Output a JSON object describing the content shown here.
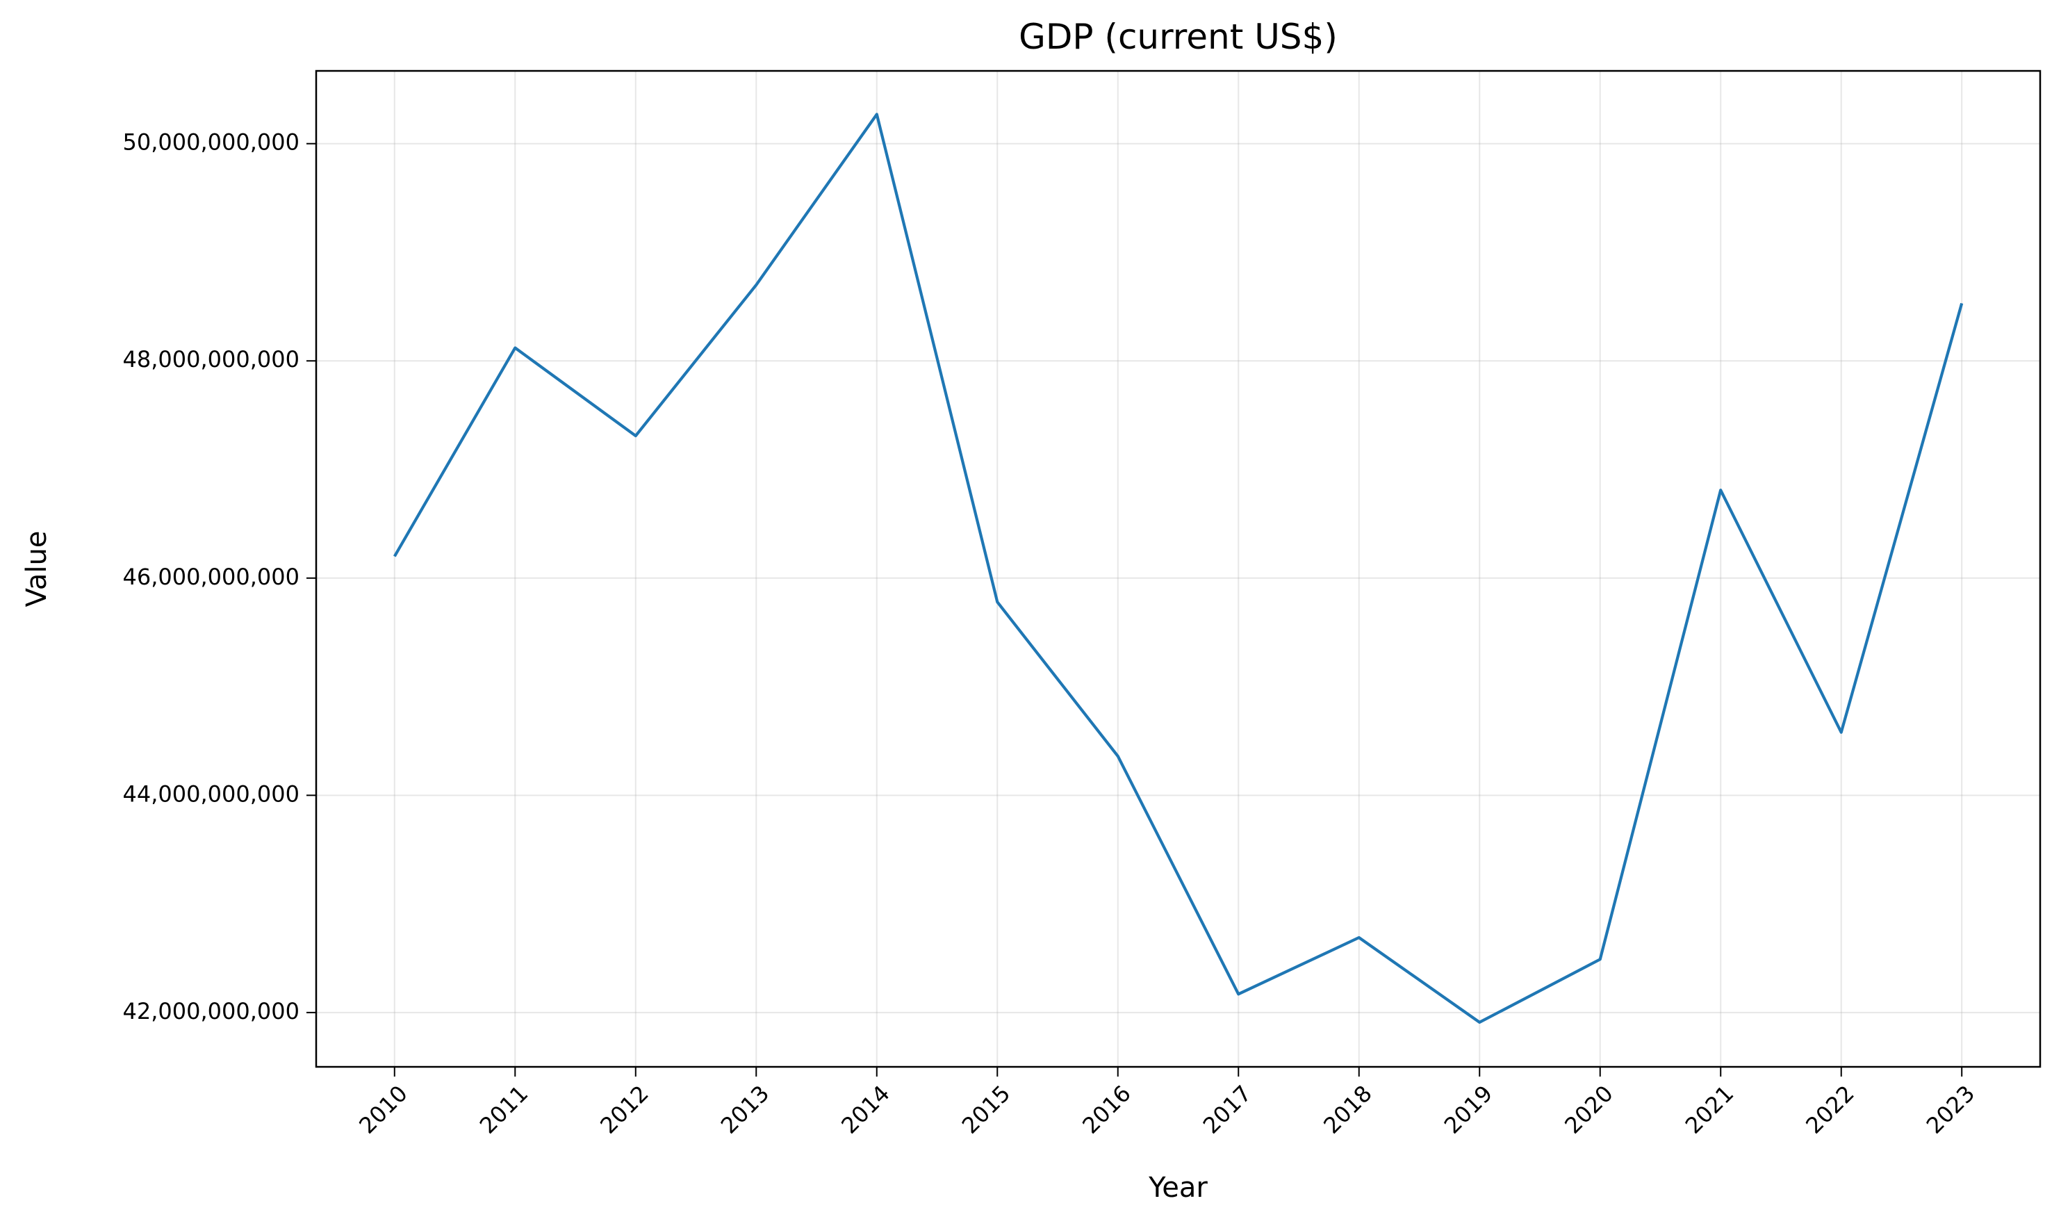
{
  "chart_data": {
    "type": "line",
    "title": "GDP (current US$)",
    "xlabel": "Year",
    "ylabel": "Value",
    "x": [
      "2010",
      "2011",
      "2012",
      "2013",
      "2014",
      "2015",
      "2016",
      "2017",
      "2018",
      "2019",
      "2020",
      "2021",
      "2022",
      "2023"
    ],
    "series": [
      {
        "values": [
          46200000000,
          48120000000,
          47310000000,
          48700000000,
          50270000000,
          45780000000,
          44360000000,
          42170000000,
          42690000000,
          41910000000,
          42490000000,
          46810000000,
          44580000000,
          48530000000
        ]
      }
    ],
    "ylim": [
      41500000000,
      50670000000
    ],
    "yticks": [
      42000000000,
      44000000000,
      46000000000,
      48000000000,
      50000000000
    ],
    "ytick_labels": [
      "42,000,000,000",
      "44,000,000,000",
      "46,000,000,000",
      "48,000,000,000",
      "50,000,000,000"
    ],
    "grid": true,
    "colors": {
      "line": "#1f77b4"
    }
  }
}
